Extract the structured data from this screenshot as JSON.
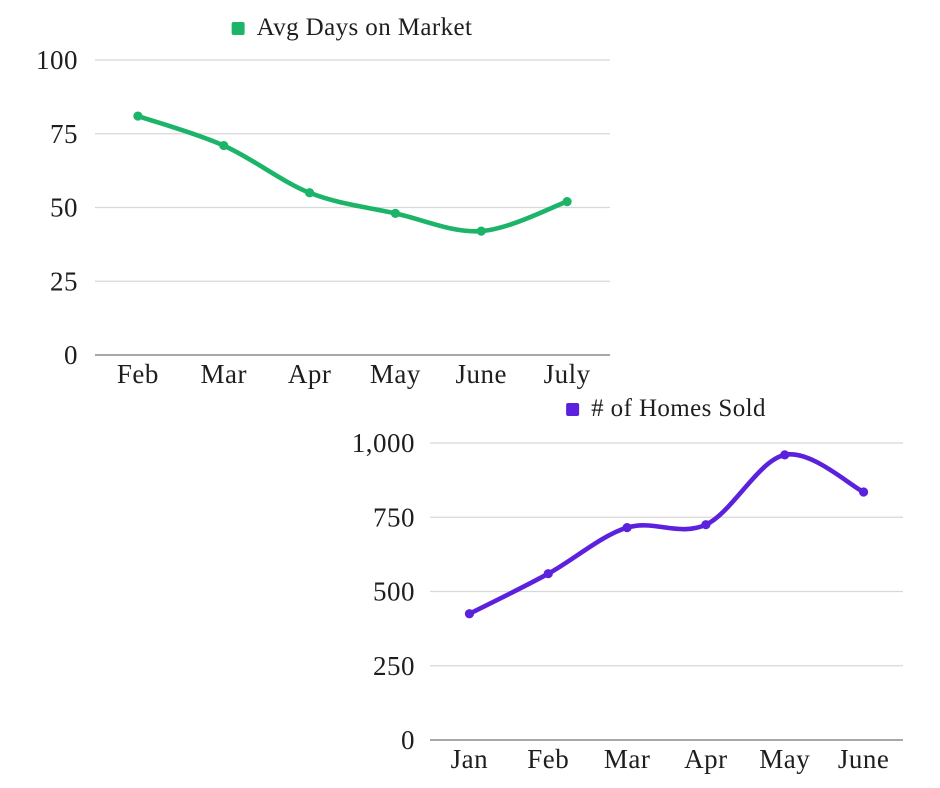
{
  "page": {
    "background_color": "#ffffff",
    "text_color": "#1e1e1e",
    "gridline_color": "#d8d8d8",
    "axis_line_color": "#a8a8a8"
  },
  "chart_data": [
    {
      "type": "line",
      "title": "",
      "legend": "Avg Days on Market",
      "legend_position": "top-center",
      "color": "#1bb469",
      "smooth": true,
      "markers": true,
      "grid": true,
      "categories": [
        "Feb",
        "Mar",
        "Apr",
        "May",
        "June",
        "July"
      ],
      "values": [
        81,
        71,
        55,
        48,
        42,
        52
      ],
      "xlabel": "",
      "ylabel": "",
      "ylim": [
        0,
        100
      ],
      "yticks": [
        0,
        25,
        50,
        75,
        100
      ],
      "ytick_labels": [
        "0",
        "25",
        "50",
        "75",
        "100"
      ]
    },
    {
      "type": "line",
      "title": "",
      "legend": "# of Homes Sold",
      "legend_position": "top-center",
      "color": "#5b21dc",
      "smooth": true,
      "markers": true,
      "grid": true,
      "categories": [
        "Jan",
        "Feb",
        "Mar",
        "Apr",
        "May",
        "June"
      ],
      "values": [
        425,
        560,
        715,
        725,
        960,
        835
      ],
      "xlabel": "",
      "ylabel": "",
      "ylim": [
        0,
        1000
      ],
      "yticks": [
        0,
        250,
        500,
        750,
        1000
      ],
      "ytick_labels": [
        "0",
        "250",
        "500",
        "750",
        "1,000"
      ]
    }
  ]
}
